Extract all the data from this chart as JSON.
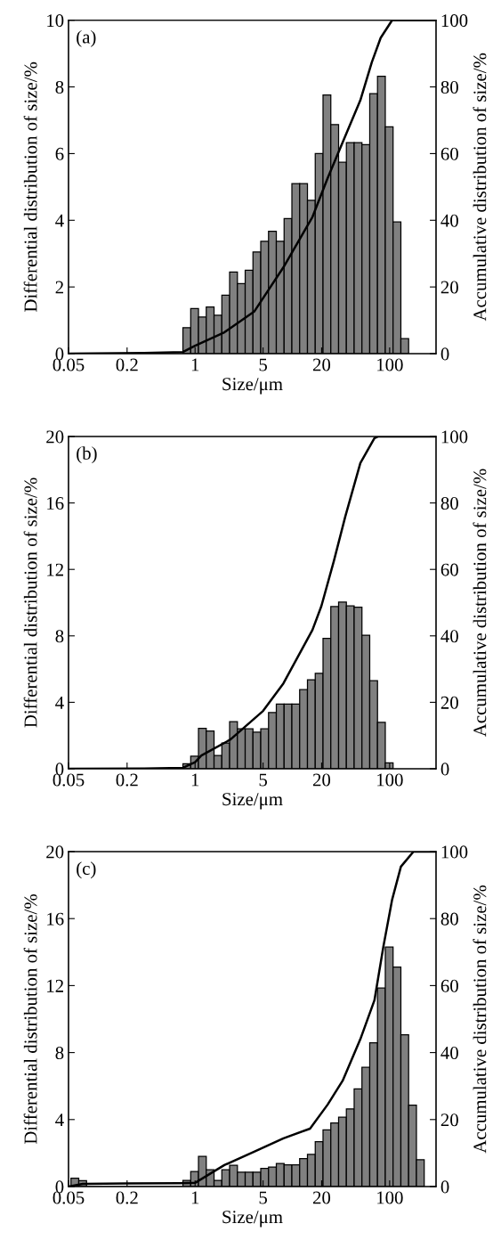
{
  "chart_data": [
    {
      "type": "histogram",
      "xlabel": "Size/μm",
      "ylabel": "Differential distribution of size/%",
      "y2label": "Accumulative distribution of size/%",
      "annotations": [
        "(a)"
      ],
      "log": "x",
      "grid": false,
      "xlim": [
        0.05,
        300
      ],
      "xticks": [
        0.05,
        0.2,
        1,
        5,
        20,
        100
      ],
      "ylim": [
        0,
        10
      ],
      "yticks": [
        0,
        2,
        4,
        6,
        8,
        10
      ],
      "y2lim": [
        0,
        100
      ],
      "y2ticks": [
        0,
        20,
        40,
        60,
        80,
        100
      ],
      "color": "#808080",
      "bins": [
        0.75,
        0.902,
        1.084,
        1.303,
        1.567,
        1.884,
        2.265,
        2.724,
        3.275,
        3.937,
        4.734,
        5.691,
        6.842,
        8.227,
        9.891,
        11.89,
        14.3,
        17.19,
        20.67,
        24.85,
        29.88,
        35.92,
        43.19,
        51.92,
        62.43,
        75.06,
        90.24,
        108.5,
        130.5,
        156.8
      ],
      "values": [
        0.78,
        1.35,
        1.1,
        1.4,
        1.15,
        1.75,
        2.45,
        2.1,
        2.5,
        3.05,
        3.37,
        3.67,
        3.37,
        4.05,
        5.1,
        5.1,
        4.6,
        6.0,
        7.76,
        6.87,
        5.74,
        6.33,
        6.33,
        6.27,
        7.8,
        8.32,
        6.8,
        3.95,
        0.45
      ],
      "series": [
        {
          "type": "line",
          "axis": "y2",
          "color": "#000000",
          "x": [
            0.05,
            0.3,
            0.75,
            1.0,
            2.0,
            4.05,
            8.1,
            16.1,
            23.1,
            32.9,
            50,
            65.6,
            80.9,
            106,
            300
          ],
          "values": [
            0,
            0.2,
            0.5,
            2.4,
            6.4,
            12.6,
            25.9,
            41,
            52.7,
            63.4,
            76,
            87.4,
            94.7,
            100,
            100
          ]
        }
      ]
    },
    {
      "type": "histogram",
      "xlabel": "Size/μm",
      "ylabel": "Differential distribution of size/%",
      "y2label": "Accumulative distribution of size/%",
      "annotations": [
        "(b)"
      ],
      "log": "x",
      "grid": false,
      "xlim": [
        0.05,
        300
      ],
      "xticks": [
        0.05,
        0.2,
        1,
        5,
        20,
        100
      ],
      "ylim": [
        0,
        20
      ],
      "yticks": [
        0,
        4,
        8,
        12,
        16,
        20
      ],
      "y2lim": [
        0,
        100
      ],
      "y2ticks": [
        0,
        20,
        40,
        60,
        80,
        100
      ],
      "color": "#808080",
      "bins": [
        0.75,
        0.902,
        1.084,
        1.303,
        1.567,
        1.884,
        2.265,
        2.724,
        3.275,
        3.937,
        4.734,
        5.691,
        6.842,
        8.227,
        9.891,
        11.89,
        14.3,
        17.19,
        20.67,
        24.85,
        29.88,
        35.92,
        43.19,
        51.92,
        62.43,
        75.06,
        90.24,
        108.5
      ],
      "values": [
        0.3,
        0.76,
        2.43,
        2.27,
        0.8,
        1.55,
        2.84,
        2.4,
        2.4,
        2.2,
        2.4,
        3.38,
        3.9,
        3.9,
        3.9,
        4.76,
        5.36,
        5.75,
        7.85,
        9.76,
        10.03,
        9.8,
        9.72,
        8.04,
        5.3,
        2.79,
        0.35
      ],
      "series": [
        {
          "type": "line",
          "axis": "y2",
          "color": "#000000",
          "x": [
            0.05,
            0.3,
            0.75,
            1.0,
            1.16,
            2.31,
            5.0,
            8.09,
            16.1,
            19.9,
            26.7,
            35,
            50,
            69.8,
            75.7,
            300
          ],
          "values": [
            0,
            0.1,
            0.3,
            2,
            4,
            8.8,
            17.4,
            25.7,
            41.8,
            49,
            62.5,
            75.9,
            92,
            99.5,
            100,
            100
          ]
        }
      ]
    },
    {
      "type": "histogram",
      "xlabel": "Size/μm",
      "ylabel": "Differential distribution of size/%",
      "y2label": "Accumulative distribution of size/%",
      "annotations": [
        "(c)"
      ],
      "log": "x",
      "grid": false,
      "xlim": [
        0.05,
        300
      ],
      "xticks": [
        0.05,
        0.2,
        1,
        5,
        20,
        100
      ],
      "ylim": [
        0,
        20
      ],
      "yticks": [
        0,
        4,
        8,
        12,
        16,
        20
      ],
      "y2lim": [
        0,
        100
      ],
      "y2ticks": [
        0,
        20,
        40,
        60,
        80,
        100
      ],
      "color": "#808080",
      "bins": [
        0.053,
        0.0637,
        0.0766,
        0.75,
        0.902,
        1.084,
        1.303,
        1.567,
        1.884,
        2.265,
        2.724,
        3.275,
        3.937,
        4.734,
        5.691,
        6.842,
        8.227,
        9.891,
        11.89,
        14.3,
        17.19,
        20.67,
        24.85,
        29.88,
        35.92,
        43.19,
        51.92,
        62.43,
        75.06,
        90.24,
        108.5,
        130.5,
        156.8,
        188.6,
        226.7
      ],
      "values": [
        0.5,
        0.35,
        0,
        0.37,
        0.9,
        1.8,
        1.0,
        0.37,
        1.0,
        1.27,
        0.86,
        0.86,
        0.86,
        1.08,
        1.17,
        1.38,
        1.3,
        1.3,
        1.67,
        1.92,
        2.68,
        3.39,
        3.8,
        4.14,
        4.64,
        5.83,
        7.12,
        8.58,
        11.85,
        14.3,
        13.1,
        9.06,
        4.86,
        1.6
      ],
      "series": [
        {
          "type": "line",
          "axis": "y2",
          "color": "#000000",
          "x": [
            0.05,
            0.07,
            0.2,
            0.7,
            1.0,
            2.0,
            4.05,
            8.1,
            15.2,
            23.1,
            32.9,
            50,
            69.8,
            86.1,
            106,
            130.6,
            176,
            300
          ],
          "values": [
            0,
            0.8,
            0.9,
            1.0,
            1.1,
            6.4,
            10.4,
            14.4,
            17.3,
            24.5,
            31.6,
            44,
            55.6,
            71.5,
            85.6,
            95.5,
            100,
            100
          ]
        }
      ]
    }
  ]
}
